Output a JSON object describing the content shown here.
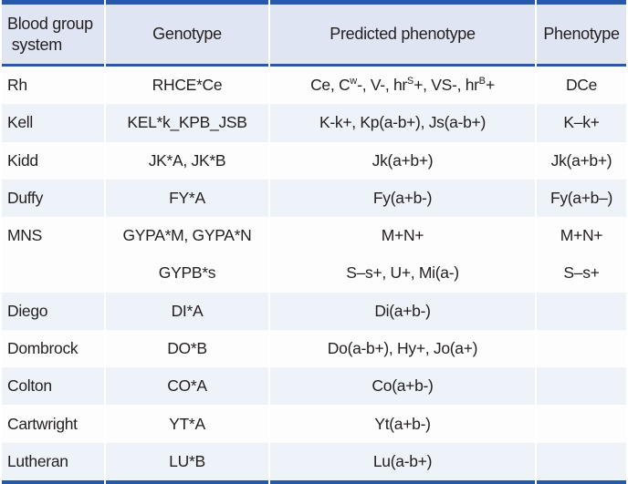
{
  "colors": {
    "accent_navy": "#2759a7",
    "header_bg": "#dfe5f2",
    "stripe_bg": "#eef2f9",
    "text": "#231f20"
  },
  "table": {
    "headers": {
      "system": "Blood group\n system",
      "genotype": "Genotype",
      "predicted": "Predicted phenotype",
      "phenotype": "Phenotype"
    },
    "rows": [
      {
        "system": "Rh",
        "genotype": "RHCE*Ce",
        "predicted": [
          {
            "t": "Ce, C"
          },
          {
            "t": "w",
            "sup": true
          },
          {
            "t": "-, V-, hr"
          },
          {
            "t": "S",
            "sup": true
          },
          {
            "t": "+, VS-, hr"
          },
          {
            "t": "B",
            "sup": true
          },
          {
            "t": "+"
          }
        ],
        "phenotype": "DCe",
        "striped": false
      },
      {
        "system": "Kell",
        "genotype": "KEL*k_KPB_JSB",
        "predicted": [
          {
            "t": "K-k+, Kp(a-b+), Js(a-b+)"
          }
        ],
        "phenotype": "K–k+",
        "striped": true
      },
      {
        "system": "Kidd",
        "genotype": "JK*A, JK*B",
        "predicted": [
          {
            "t": "Jk(a+b+)"
          }
        ],
        "phenotype": "Jk(a+b+)",
        "striped": false
      },
      {
        "system": "Duffy",
        "genotype": "FY*A",
        "predicted": [
          {
            "t": "Fy(a+b-)"
          }
        ],
        "phenotype": "Fy(a+b–)",
        "striped": true
      },
      {
        "system": "MNS",
        "genotype": "GYPA*M, GYPA*N",
        "predicted": [
          {
            "t": "M+N+"
          }
        ],
        "phenotype": "M+N+",
        "striped": false
      },
      {
        "system": "",
        "genotype": "GYPB*s",
        "predicted": [
          {
            "t": "S–s+, U+, Mi(a-)"
          }
        ],
        "phenotype": "S–s+",
        "striped": false
      },
      {
        "system": "Diego",
        "genotype": "DI*A",
        "predicted": [
          {
            "t": "Di(a+b-)"
          }
        ],
        "phenotype": "",
        "striped": true
      },
      {
        "system": "Dombrock",
        "genotype": "DO*B",
        "predicted": [
          {
            "t": "Do(a-b+), Hy+, Jo(a+)"
          }
        ],
        "phenotype": "",
        "striped": false
      },
      {
        "system": "Colton",
        "genotype": "CO*A",
        "predicted": [
          {
            "t": "Co(a+b-)"
          }
        ],
        "phenotype": "",
        "striped": true
      },
      {
        "system": "Cartwright",
        "genotype": "YT*A",
        "predicted": [
          {
            "t": "Yt(a+b-)"
          }
        ],
        "phenotype": "",
        "striped": false
      },
      {
        "system": "Lutheran",
        "genotype": "LU*B",
        "predicted": [
          {
            "t": "Lu(a-b+)"
          }
        ],
        "phenotype": "",
        "striped": true
      }
    ]
  }
}
